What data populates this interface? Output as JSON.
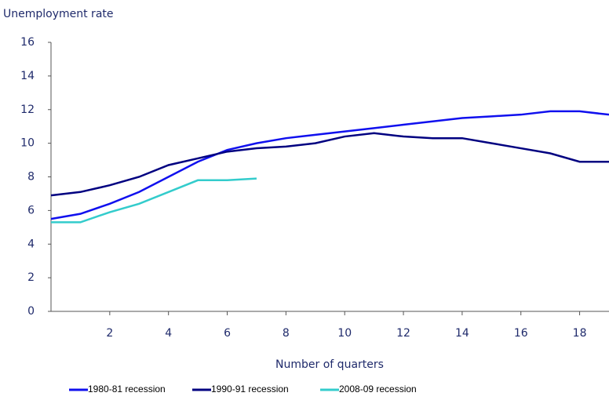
{
  "chart_data": {
    "type": "line",
    "title": "Unemployment rate",
    "x_label": "Number of quarters",
    "x": [
      0,
      1,
      2,
      3,
      4,
      5,
      6,
      7,
      8,
      9,
      10,
      11,
      12,
      13,
      14,
      15,
      16,
      17,
      18,
      19
    ],
    "series": [
      {
        "name": "1980-81 recession",
        "color": "#1010ee",
        "values": [
          5.5,
          5.8,
          6.4,
          7.1,
          8.0,
          8.9,
          9.6,
          10.0,
          10.3,
          10.5,
          10.7,
          10.9,
          11.1,
          11.3,
          11.5,
          11.6,
          11.7,
          11.9,
          11.9,
          11.7
        ]
      },
      {
        "name": "1990-91 recession",
        "color": "#000080",
        "values": [
          6.9,
          7.1,
          7.5,
          8.0,
          8.7,
          9.1,
          9.5,
          9.7,
          9.8,
          10.0,
          10.4,
          10.6,
          10.4,
          10.3,
          10.3,
          10.0,
          9.7,
          9.4,
          8.9,
          8.9
        ]
      },
      {
        "name": "2008-09 recession",
        "color": "#33cccc",
        "values": [
          5.3,
          5.3,
          5.9,
          6.4,
          7.1,
          7.8,
          7.8,
          7.9,
          null,
          null,
          null,
          null,
          null,
          null,
          null,
          null,
          null,
          null,
          null,
          null
        ]
      }
    ],
    "xlim": [
      0,
      19
    ],
    "xticks": [
      2,
      4,
      6,
      8,
      10,
      12,
      14,
      16,
      18
    ],
    "ylim": [
      0,
      16
    ],
    "yticks": [
      0,
      2,
      4,
      6,
      8,
      10,
      12,
      14,
      16
    ],
    "grid": false
  }
}
